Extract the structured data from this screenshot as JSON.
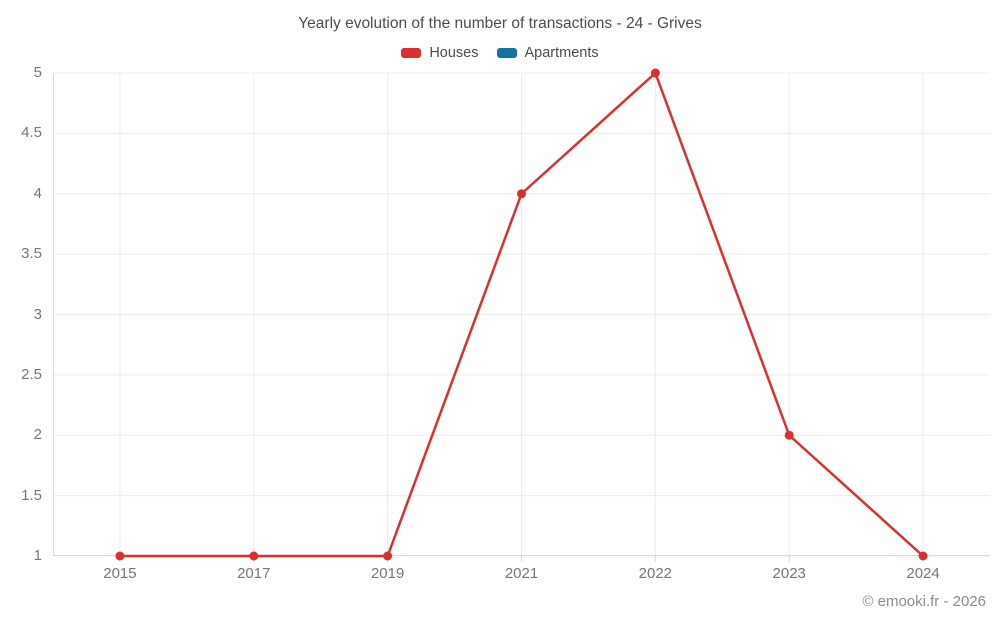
{
  "title": "Yearly evolution of the number of transactions - 24 - Grives",
  "footer": "© emooki.fr - 2026",
  "legend": [
    {
      "label": "Houses",
      "color": "#d8302f"
    },
    {
      "label": "Apartments",
      "color": "#1272a2"
    }
  ],
  "colors": {
    "grid": "#ececec",
    "axis": "#d9d9d9",
    "tick_text": "#757575",
    "title_text": "#4c4c4c",
    "footer_text": "#8b8b8b"
  },
  "chart_data": {
    "type": "line",
    "title": "Yearly evolution of the number of transactions - 24 - Grives",
    "categories": [
      "2015",
      "2017",
      "2019",
      "2021",
      "2022",
      "2023",
      "2024"
    ],
    "series": [
      {
        "name": "Houses",
        "color": "#d8302f",
        "values": [
          1,
          1,
          1,
          4,
          5,
          2,
          1
        ]
      },
      {
        "name": "Apartments",
        "color": "#1272a2",
        "values": []
      }
    ],
    "xlabel": "",
    "ylabel": "",
    "ylim": [
      1,
      5
    ],
    "yticks": [
      1,
      1.5,
      2,
      2.5,
      3,
      3.5,
      4,
      4.5,
      5
    ],
    "grid": true,
    "legend_position": "top"
  }
}
